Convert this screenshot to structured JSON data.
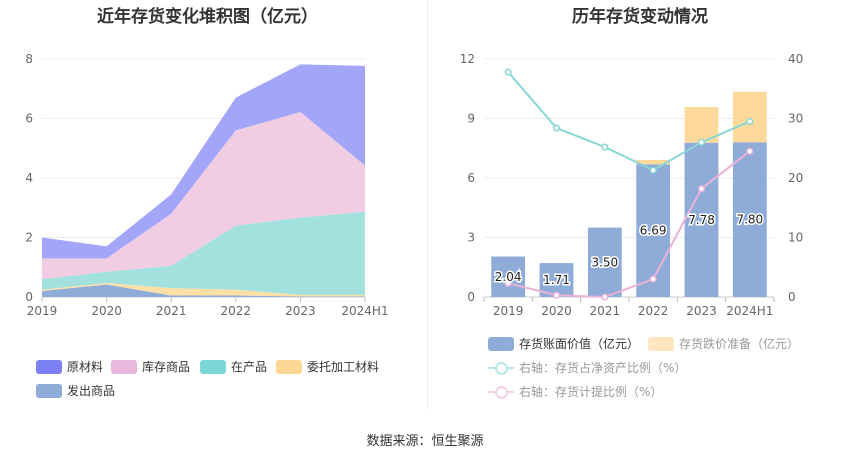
{
  "titles": {
    "left": "近年存货变化堆积图（亿元）",
    "right": "历年存货变动情况"
  },
  "source": "数据来源：恒生聚源",
  "chart_data": [
    {
      "type": "area",
      "stacked": true,
      "title": "近年存货变化堆积图（亿元）",
      "categories": [
        "2019",
        "2020",
        "2021",
        "2022",
        "2023",
        "2024H1"
      ],
      "ylim": [
        0,
        8
      ],
      "yticks": [
        0,
        2,
        4,
        6,
        8
      ],
      "grid": true,
      "legend_position": "bottom",
      "series": [
        {
          "name": "发出商品",
          "values": [
            0.2,
            0.42,
            0.05,
            0.05,
            0.02,
            0.02
          ],
          "color": "#8facd8"
        },
        {
          "name": "委托加工材料",
          "values": [
            0.05,
            0.05,
            0.25,
            0.2,
            0.05,
            0.05
          ],
          "color": "#fde0a6"
        },
        {
          "name": "在产品",
          "values": [
            0.35,
            0.38,
            0.75,
            2.15,
            2.6,
            2.8
          ],
          "color": "#a3e1df"
        },
        {
          "name": "库存商品",
          "values": [
            0.7,
            0.45,
            1.75,
            3.2,
            3.55,
            1.55
          ],
          "color": "#f0cde3"
        },
        {
          "name": "原材料",
          "values": [
            0.7,
            0.4,
            0.65,
            1.1,
            1.6,
            3.35
          ],
          "color": "#a3a5f8"
        }
      ],
      "legend": [
        {
          "name": "原材料",
          "color": "#7b80f2"
        },
        {
          "name": "库存商品",
          "color": "#e9b8dc"
        },
        {
          "name": "在产品",
          "color": "#7dd6d6"
        },
        {
          "name": "委托加工材料",
          "color": "#fcd896"
        },
        {
          "name": "发出商品",
          "color": "#8facd8"
        }
      ]
    },
    {
      "type": "bar",
      "stacked": true,
      "title": "历年存货变动情况",
      "categories": [
        "2019",
        "2020",
        "2021",
        "2022",
        "2023",
        "2024H1"
      ],
      "ylim": [
        0,
        12
      ],
      "yticks": [
        0,
        3,
        6,
        9,
        12
      ],
      "y2lim": [
        0,
        40
      ],
      "y2ticks": [
        0,
        10,
        20,
        30,
        40
      ],
      "grid": true,
      "legend_position": "bottom",
      "series": [
        {
          "name": "存货账面价值（亿元）",
          "values": [
            2.04,
            1.71,
            3.5,
            6.69,
            7.78,
            7.8
          ],
          "labels": [
            "2.04",
            "1.71",
            "3.50",
            "6.69",
            "7.78",
            "7.80"
          ],
          "color": "#8facd8",
          "axis": "left"
        },
        {
          "name": "存货跌价准备（亿元）",
          "values": [
            0,
            0,
            0,
            0.22,
            1.8,
            2.55
          ],
          "color": "#fdd99b",
          "axis": "left"
        },
        {
          "name": "右轴：存货占净资产比例（%）",
          "type": "line",
          "values": [
            37.8,
            28.4,
            25.2,
            21.3,
            26.0,
            29.5
          ],
          "color": "#88d6d6",
          "axis": "right"
        },
        {
          "name": "右轴：存货计提比例（%）",
          "type": "line",
          "values": [
            2.3,
            0.3,
            0.0,
            3.0,
            18.2,
            24.5
          ],
          "color": "#ebb2d8",
          "axis": "right"
        }
      ]
    }
  ]
}
